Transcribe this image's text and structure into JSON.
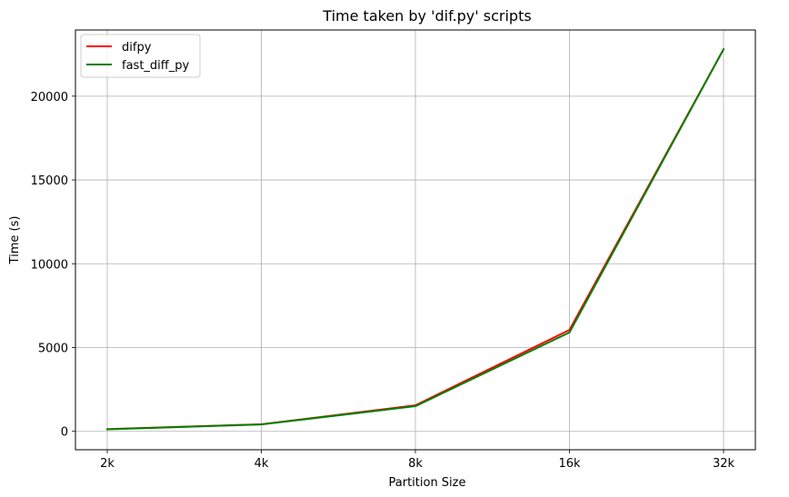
{
  "chart_data": {
    "type": "line",
    "title": "Time taken by 'dif.py' scripts",
    "xlabel": "Partition Size",
    "ylabel": "Time (s)",
    "categories": [
      "2k",
      "4k",
      "8k",
      "16k",
      "32k"
    ],
    "ylim": [
      -1100,
      23950
    ],
    "yticks": [
      0,
      5000,
      10000,
      15000,
      20000
    ],
    "ytick_labels": [
      "0",
      "5000",
      "10000",
      "15000",
      "20000"
    ],
    "grid": true,
    "legend_position": "top-left",
    "series": [
      {
        "name": "difpy",
        "color": "#ff0000",
        "values": [
          130,
          420,
          1550,
          6050,
          22800
        ]
      },
      {
        "name": "fast_diff_py",
        "color": "#008000",
        "values": [
          120,
          410,
          1500,
          5900,
          22800
        ]
      }
    ]
  }
}
